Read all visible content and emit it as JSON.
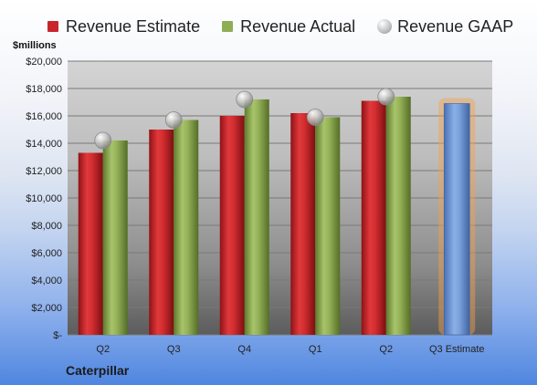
{
  "chart_data": {
    "type": "bar",
    "ylabel": "$millions",
    "ylim": [
      0,
      20000
    ],
    "y_ticks": [
      "$-",
      "$2,000",
      "$4,000",
      "$6,000",
      "$8,000",
      "$10,000",
      "$12,000",
      "$14,000",
      "$16,000",
      "$18,000",
      "$20,000"
    ],
    "categories": [
      "Q2",
      "Q3",
      "Q4",
      "Q1",
      "Q2",
      "Q3 Estimate"
    ],
    "series": [
      {
        "name": "Revenue Estimate",
        "type": "bar",
        "color": "#c8262b",
        "values": [
          13300,
          15000,
          16000,
          16200,
          17100,
          null
        ]
      },
      {
        "name": "Revenue Actual",
        "type": "bar",
        "color": "#8fae54",
        "values": [
          14200,
          15700,
          17200,
          15900,
          17400,
          null
        ]
      },
      {
        "name": "Revenue GAAP",
        "type": "bubble",
        "color": "#b5b5b5",
        "values": [
          14200,
          15700,
          17200,
          15900,
          17400,
          null
        ]
      }
    ],
    "projection": {
      "category": "Q3 Estimate",
      "value": 16900,
      "color": "#6f98d6",
      "glow": "#f5a24a"
    },
    "company": "Caterpillar",
    "legend_position": "top",
    "grid": true
  }
}
